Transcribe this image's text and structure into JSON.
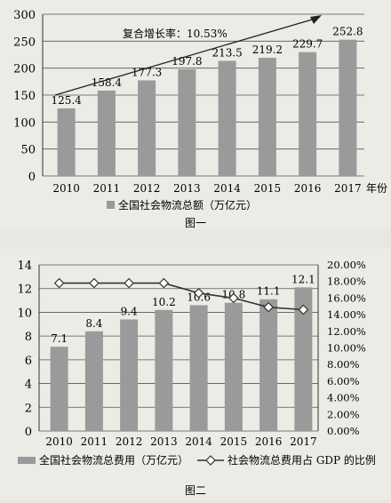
{
  "figure1": {
    "caption": "图一",
    "annotation": "复合增长率：10.53%",
    "x_unit": "年份",
    "legend": "全国社会物流总额（万亿元）"
  },
  "figure2": {
    "caption": "图二",
    "legend_bar": "全国社会物流总费用（万亿元）",
    "legend_line": "社会物流总费用占 GDP 的比例"
  },
  "colors": {
    "bar": "#9a9a9a",
    "line": "#333333",
    "marker_fill": "#ffffff"
  },
  "chart_data": [
    {
      "type": "bar",
      "categories": [
        "2010",
        "2011",
        "2012",
        "2013",
        "2014",
        "2015",
        "2016",
        "2017"
      ],
      "values": [
        125.4,
        158.4,
        177.3,
        197.8,
        213.5,
        219.2,
        229.7,
        252.8
      ],
      "ylim": [
        0,
        300
      ],
      "yticks": [
        0,
        50,
        100,
        150,
        200,
        250,
        300
      ],
      "grid": true,
      "legend_position": "bottom",
      "series": [
        {
          "name": "全国社会物流总额（万亿元）",
          "values": [
            125.4,
            158.4,
            177.3,
            197.8,
            213.5,
            219.2,
            229.7,
            252.8
          ]
        }
      ]
    },
    {
      "type": "bar",
      "categories": [
        "2010",
        "2011",
        "2012",
        "2013",
        "2014",
        "2015",
        "2016",
        "2017"
      ],
      "ylim": [
        0,
        14
      ],
      "yticks": [
        0,
        2,
        4,
        6,
        8,
        10,
        12,
        14
      ],
      "y2lim": [
        0,
        0.2
      ],
      "y2ticks": [
        "0.00%",
        "2.00%",
        "4.00%",
        "6.00%",
        "8.00%",
        "10.00%",
        "12.00%",
        "14.00%",
        "16.00%",
        "18.00%",
        "20.00%"
      ],
      "grid": true,
      "legend_position": "bottom",
      "series": [
        {
          "name": "全国社会物流总费用（万亿元）",
          "type": "bar",
          "axis": "left",
          "values": [
            7.1,
            8.4,
            9.4,
            10.2,
            10.6,
            10.8,
            11.1,
            12.1
          ]
        },
        {
          "name": "社会物流总费用占 GDP 的比例",
          "type": "line",
          "axis": "right",
          "values": [
            0.178,
            0.178,
            0.178,
            0.178,
            0.166,
            0.16,
            0.149,
            0.146
          ]
        }
      ]
    }
  ]
}
